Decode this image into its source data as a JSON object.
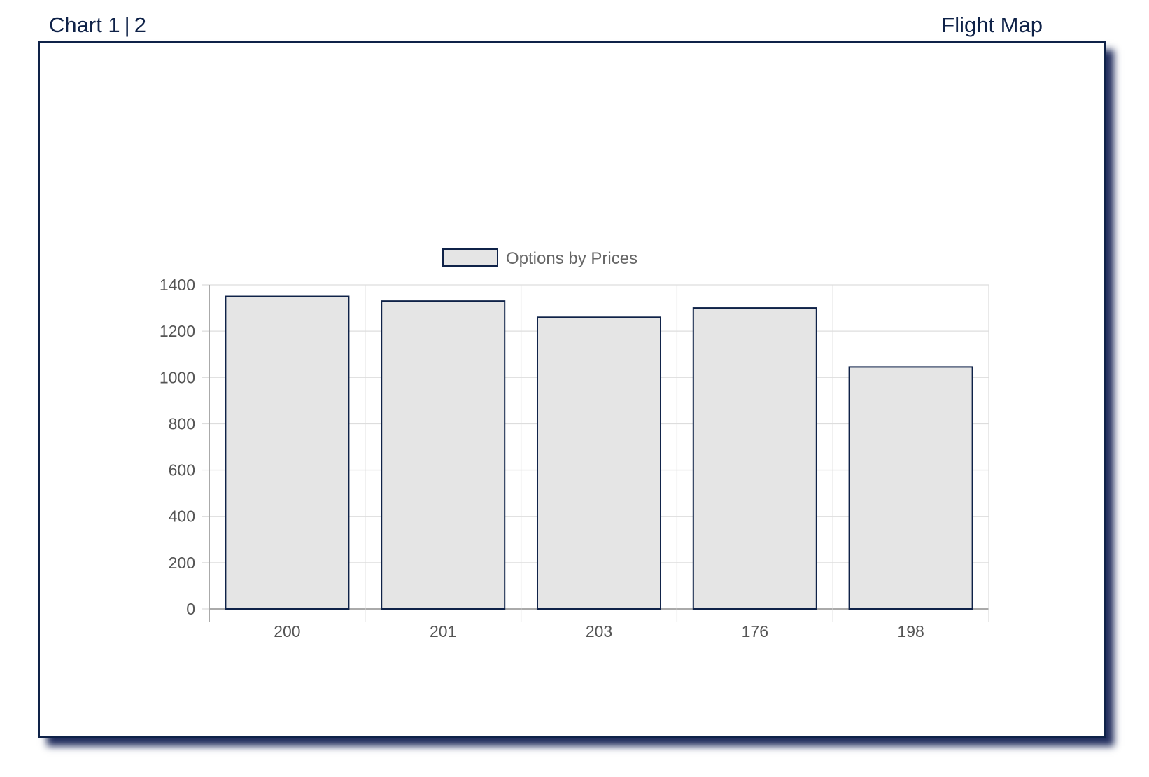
{
  "nav": {
    "chart_one": "Chart 1",
    "separator": "|",
    "chart_two": "2",
    "flight_map": "Flight Map"
  },
  "colors": {
    "bar_fill": "#e5e5e5",
    "bar_border": "#0f2248",
    "grid": "#dddddd",
    "axis": "#aaaaaa",
    "accent": "#0f2248"
  },
  "chart_data": {
    "type": "bar",
    "categories": [
      "200",
      "201",
      "203",
      "176",
      "198"
    ],
    "series": [
      {
        "name": "Options by Prices",
        "values": [
          1350,
          1330,
          1260,
          1300,
          1045
        ]
      }
    ],
    "ylim": [
      0,
      1400
    ],
    "yticks": [
      "0",
      "200",
      "400",
      "600",
      "800",
      "1000",
      "1200",
      "1400"
    ],
    "grid": true,
    "legend_position": "top"
  }
}
